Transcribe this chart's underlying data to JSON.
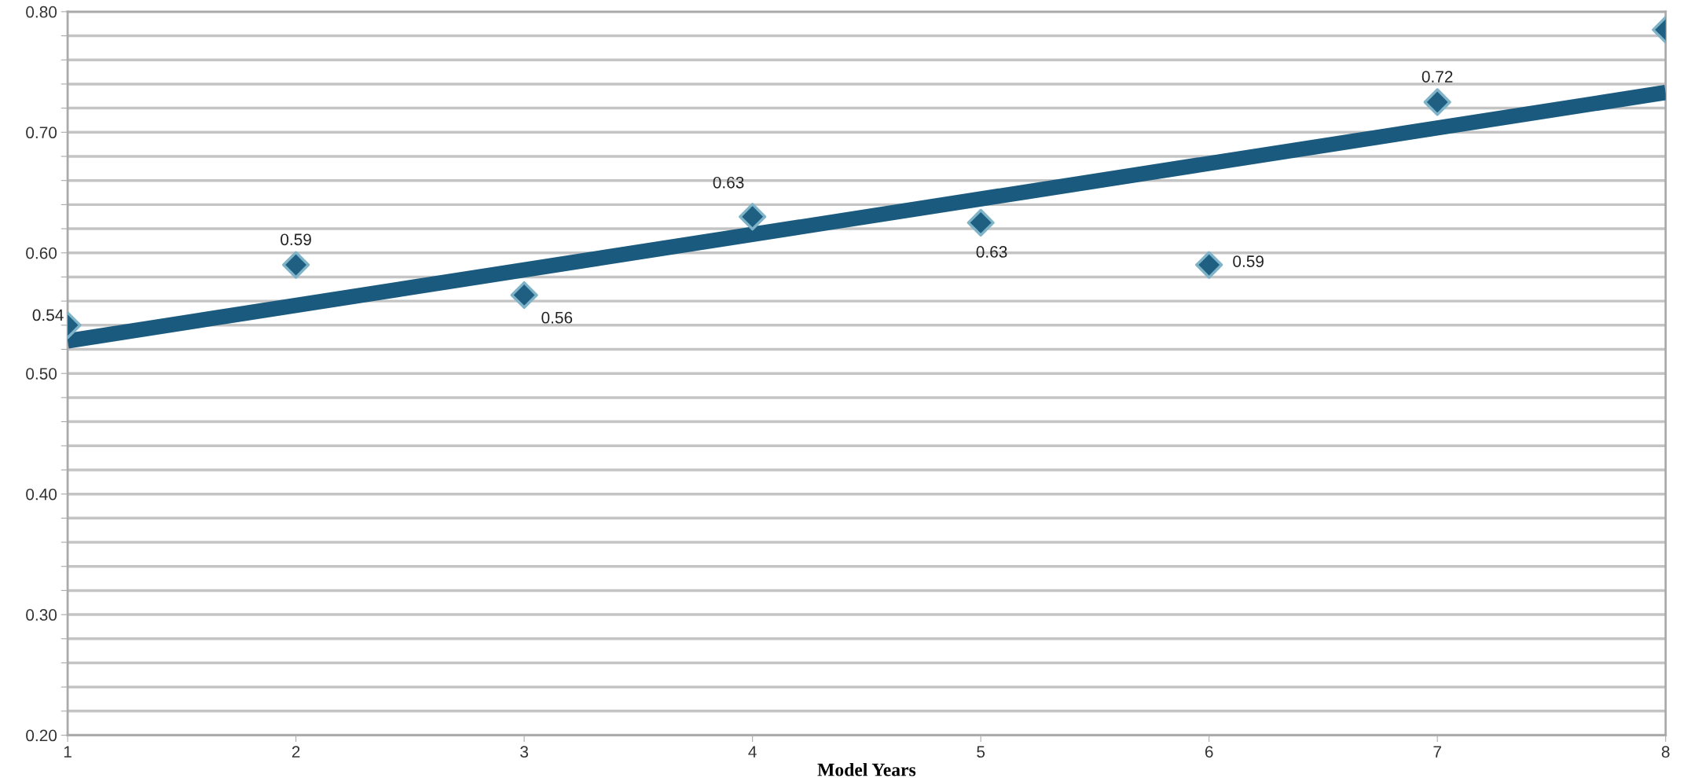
{
  "chart_data": {
    "type": "scatter",
    "xlabel": "Model Years",
    "series": [
      {
        "color": "#1f5f82",
        "marker": "diamond",
        "x": [
          1,
          2,
          3,
          4,
          5,
          6,
          7,
          8
        ],
        "values": [
          0.54,
          0.59,
          0.565,
          0.63,
          0.625,
          0.59,
          0.725,
          0.785
        ],
        "value_labels": [
          "0.54",
          "0.59",
          "0.56",
          "0.63",
          "0.63",
          "0.59",
          "0.72",
          null
        ]
      },
      {
        "type": "line",
        "color": "#1a5a7e",
        "marker": "none",
        "x": [
          1,
          8
        ],
        "values": [
          0.527,
          0.733
        ]
      }
    ],
    "xlim": [
      1,
      8
    ],
    "xticks": [
      1,
      2,
      3,
      4,
      5,
      6,
      7,
      8
    ],
    "ylim": [
      0.2,
      0.8
    ],
    "yticks": [
      {
        "value": 0.2,
        "label": "0.20"
      },
      {
        "value": 0.22,
        "label": null
      },
      {
        "value": 0.24,
        "label": null
      },
      {
        "value": 0.26,
        "label": null
      },
      {
        "value": 0.28,
        "label": null
      },
      {
        "value": 0.3,
        "label": "0.30"
      },
      {
        "value": 0.32,
        "label": null
      },
      {
        "value": 0.34,
        "label": null
      },
      {
        "value": 0.36,
        "label": null
      },
      {
        "value": 0.38,
        "label": null
      },
      {
        "value": 0.4,
        "label": "0.40"
      },
      {
        "value": 0.42,
        "label": null
      },
      {
        "value": 0.44,
        "label": null
      },
      {
        "value": 0.46,
        "label": null
      },
      {
        "value": 0.48,
        "label": null
      },
      {
        "value": 0.5,
        "label": "0.50"
      },
      {
        "value": 0.52,
        "label": null
      },
      {
        "value": 0.54,
        "label": null
      },
      {
        "value": 0.56,
        "label": null
      },
      {
        "value": 0.58,
        "label": null
      },
      {
        "value": 0.6,
        "label": "0.60"
      },
      {
        "value": 0.62,
        "label": null
      },
      {
        "value": 0.64,
        "label": null
      },
      {
        "value": 0.66,
        "label": null
      },
      {
        "value": 0.68,
        "label": null
      },
      {
        "value": 0.7,
        "label": "0.70"
      },
      {
        "value": 0.72,
        "label": null
      },
      {
        "value": 0.74,
        "label": null
      },
      {
        "value": 0.76,
        "label": null
      },
      {
        "value": 0.78,
        "label": null
      },
      {
        "value": 0.8,
        "label": "0.80"
      }
    ],
    "grid": "y",
    "legend": false
  }
}
